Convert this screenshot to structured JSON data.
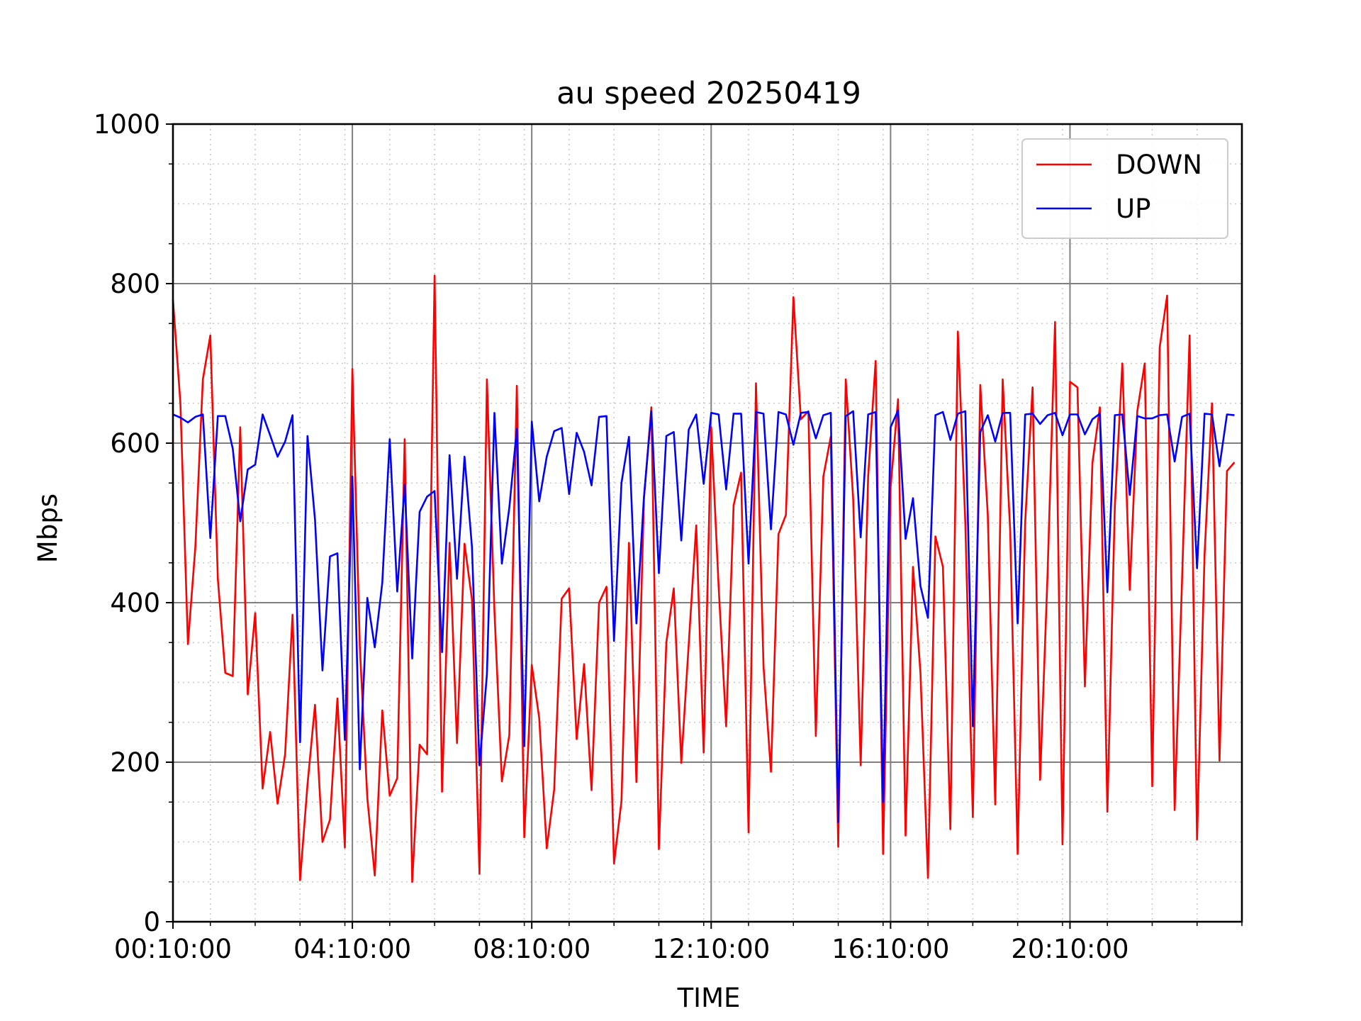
{
  "chart_data": {
    "type": "line",
    "title": "au speed 20250419",
    "xlabel": "TIME",
    "ylabel": "Mbps",
    "ylim": [
      0,
      1000
    ],
    "yticks": [
      0,
      200,
      400,
      600,
      800,
      1000
    ],
    "xlim": [
      "00:10:00",
      "24:00:00"
    ],
    "xticks": [
      "00:10:00",
      "04:10:00",
      "08:10:00",
      "12:10:00",
      "16:10:00",
      "20:10:00"
    ],
    "grid": "major solid gray, minor dotted",
    "legend_position": "top-right",
    "x_sampling": "every 10 minutes from 00:10:00",
    "series": [
      {
        "name": "DOWN",
        "color": "#ff0000",
        "values": [
          780,
          650,
          348,
          470,
          680,
          735,
          430,
          312,
          308,
          620,
          285,
          387,
          167,
          238,
          148,
          210,
          385,
          52,
          172,
          272,
          100,
          128,
          280,
          93,
          693,
          345,
          155,
          58,
          265,
          158,
          180,
          605,
          50,
          222,
          210,
          810,
          163,
          475,
          224,
          474,
          404,
          60,
          680,
          390,
          176,
          234,
          672,
          106,
          322,
          255,
          92,
          166,
          405,
          418,
          229,
          323,
          165,
          400,
          420,
          73,
          151,
          475,
          175,
          530,
          645,
          91,
          350,
          418,
          199,
          348,
          497,
          212,
          620,
          420,
          245,
          522,
          563,
          112,
          675,
          320,
          188,
          486,
          510,
          783,
          630,
          640,
          233,
          558,
          608,
          94,
          680,
          530,
          196,
          558,
          703,
          85,
          545,
          655,
          108,
          445,
          312,
          55,
          483,
          445,
          116,
          740,
          500,
          131,
          673,
          510,
          147,
          680,
          490,
          85,
          500,
          670,
          178,
          435,
          752,
          97,
          677,
          670,
          295,
          575,
          645,
          138,
          520,
          700,
          416,
          640,
          700,
          170,
          720,
          785,
          140,
          430,
          735,
          103,
          460,
          650,
          202,
          565,
          576
        ]
      },
      {
        "name": "UP",
        "color": "#0000ff",
        "values": [
          636,
          632,
          626,
          633,
          636,
          481,
          634,
          634,
          593,
          502,
          567,
          573,
          636,
          610,
          583,
          602,
          635,
          225,
          609,
          504,
          315,
          458,
          462,
          228,
          558,
          191,
          406,
          344,
          425,
          605,
          414,
          548,
          330,
          514,
          533,
          540,
          338,
          585,
          430,
          583,
          470,
          196,
          310,
          638,
          449,
          519,
          618,
          220,
          627,
          527,
          583,
          615,
          619,
          536,
          613,
          589,
          547,
          633,
          634,
          352,
          550,
          608,
          374,
          532,
          640,
          437,
          609,
          614,
          478,
          617,
          636,
          549,
          638,
          636,
          542,
          637,
          637,
          449,
          639,
          637,
          492,
          639,
          636,
          598,
          638,
          639,
          606,
          635,
          638,
          125,
          634,
          640,
          482,
          636,
          639,
          150,
          620,
          641,
          480,
          531,
          421,
          381,
          635,
          639,
          604,
          637,
          640,
          245,
          614,
          635,
          602,
          638,
          638,
          374,
          636,
          637,
          624,
          635,
          638,
          610,
          636,
          636,
          611,
          630,
          637,
          413,
          635,
          636,
          535,
          634,
          631,
          631,
          635,
          636,
          577,
          633,
          637,
          443,
          637,
          636,
          571,
          636,
          635
        ]
      }
    ]
  }
}
